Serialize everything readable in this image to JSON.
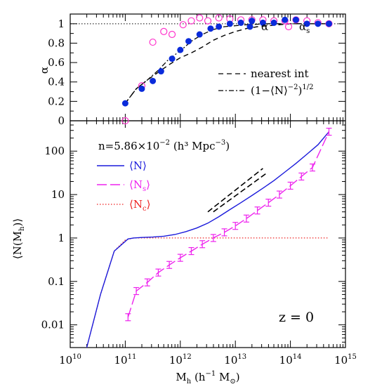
{
  "chart_data": [
    {
      "type": "scatter",
      "panel": "top",
      "ylabel": "α",
      "xscale": "log",
      "xlim": [
        10000000000.0,
        1000000000000000.0
      ],
      "ylim": [
        0,
        1.1
      ],
      "yticks": [
        "0",
        "0.2",
        "0.4",
        "0.6",
        "0.8",
        "1"
      ],
      "yticks_values": [
        0,
        0.2,
        0.4,
        0.6,
        0.8,
        1.0
      ],
      "reference_line": {
        "y": 1.0,
        "style": "dotted"
      },
      "series": [
        {
          "name": "α",
          "marker": "filled-circle",
          "color": "#0a2bdb",
          "x_log10": [
            11.0,
            11.3,
            11.5,
            11.65,
            11.85,
            12.0,
            12.15,
            12.35,
            12.55,
            12.7,
            12.9,
            13.1,
            13.3,
            13.5,
            13.7,
            13.9,
            14.1,
            14.3,
            14.5,
            14.7
          ],
          "y": [
            0.18,
            0.33,
            0.41,
            0.51,
            0.64,
            0.73,
            0.82,
            0.89,
            0.95,
            0.97,
            1.0,
            1.01,
            1.03,
            1.01,
            1.01,
            1.04,
            1.04,
            1.0,
            1.0,
            1.0
          ]
        },
        {
          "name": "α_s",
          "marker": "open-circle",
          "color": "#ff33cc",
          "x_log10": [
            11.0,
            11.3,
            11.5,
            11.7,
            11.85,
            12.05,
            12.2,
            12.35,
            12.5,
            12.7,
            12.9,
            13.1,
            13.3,
            13.5,
            13.7,
            13.9,
            14.1,
            14.3,
            14.5,
            14.7
          ],
          "y": [
            0.0,
            0.36,
            0.81,
            0.92,
            0.89,
            0.99,
            1.03,
            1.06,
            1.03,
            1.06,
            1.05,
            1.04,
            1.04,
            1.04,
            1.03,
            1.03,
            1.04,
            1.03,
            1.01,
            1.0
          ]
        },
        {
          "name": "nearest int",
          "style": "dashed",
          "color": "#000000",
          "x_log10": [
            11.0,
            11.2,
            11.4,
            11.6,
            11.8,
            12.0,
            12.2,
            12.4,
            12.6,
            12.8,
            13.0,
            13.2,
            13.4,
            13.6,
            13.8,
            14.0,
            14.2,
            14.4,
            14.6,
            14.7
          ],
          "y": [
            0.18,
            0.33,
            0.42,
            0.5,
            0.58,
            0.65,
            0.7,
            0.76,
            0.83,
            0.88,
            0.92,
            0.95,
            0.97,
            0.98,
            0.99,
            1.0,
            1.0,
            1.0,
            1.0,
            1.0
          ]
        },
        {
          "name": "(1−⟨N⟩⁻²)^(1/2)",
          "style": "dash-dot",
          "color": "#000000",
          "x_log10": [
            11.0,
            11.2,
            11.4,
            11.6,
            11.8,
            12.0,
            12.2,
            12.4,
            12.6,
            12.8,
            13.0,
            13.2,
            13.4,
            13.6,
            13.8,
            14.0,
            14.2,
            14.4,
            14.6,
            14.7
          ],
          "y": [
            0.18,
            0.33,
            0.42,
            0.52,
            0.64,
            0.72,
            0.82,
            0.89,
            0.94,
            0.97,
            0.98,
            0.99,
            0.995,
            1.0,
            1.0,
            1.0,
            1.0,
            1.0,
            1.0,
            1.0
          ]
        }
      ],
      "legend": {
        "alpha": "α",
        "alpha_s": "α",
        "alpha_s_sub": "s",
        "nearest": "nearest int",
        "sqrt_main": "(1−⟨N⟩",
        "sqrt_exp1": "−2",
        "sqrt_mid": ")",
        "sqrt_exp2": "1/2"
      }
    },
    {
      "type": "line",
      "panel": "bottom",
      "ylabel": "⟨N(M_h)⟩",
      "xlabel": "M_h (h⁻¹ M_⊙)",
      "xscale": "log",
      "yscale": "log",
      "xlim": [
        10000000000.0,
        1000000000000000.0
      ],
      "ylim": [
        0.003,
        500
      ],
      "yticks": [
        "0.01",
        "0.1",
        "1",
        "10",
        "100"
      ],
      "yticks_values": [
        0.01,
        0.1,
        1,
        10,
        100
      ],
      "xticks_values": [
        10000000000.0,
        100000000000.0,
        1000000000000.0,
        10000000000000.0,
        100000000000000.0,
        1000000000000000.0
      ],
      "series": [
        {
          "name": "⟨N⟩",
          "style": "solid",
          "color": "#1a1adb",
          "x_log10": [
            10.3,
            10.55,
            10.8,
            11.05,
            11.15,
            11.3,
            11.5,
            11.7,
            11.9,
            12.1,
            12.3,
            12.5,
            12.7,
            12.9,
            13.1,
            13.3,
            13.5,
            13.7,
            13.9,
            14.1,
            14.3,
            14.5,
            14.7
          ],
          "y": [
            0.003,
            0.05,
            0.5,
            0.95,
            1.0,
            1.03,
            1.05,
            1.1,
            1.2,
            1.4,
            1.7,
            2.2,
            3.1,
            4.5,
            6.5,
            9.5,
            14,
            21,
            33,
            52,
            85,
            140,
            280
          ]
        },
        {
          "name": "⟨N_s⟩",
          "style": "long-dash",
          "color": "#ee22ee",
          "x_log10": [
            11.05,
            11.2,
            11.4,
            11.6,
            11.8,
            12.0,
            12.2,
            12.4,
            12.6,
            12.8,
            13.0,
            13.2,
            13.4,
            13.6,
            13.8,
            14.0,
            14.2,
            14.4,
            14.7
          ],
          "y": [
            0.015,
            0.06,
            0.095,
            0.16,
            0.24,
            0.35,
            0.5,
            0.72,
            1.0,
            1.35,
            1.9,
            2.8,
            4.3,
            6.5,
            10,
            16,
            26,
            42,
            280
          ],
          "error_bars": true
        },
        {
          "name": "⟨N_c⟩",
          "style": "dotted",
          "color": "#ee2222",
          "x_log10": [
            10.3,
            10.55,
            10.8,
            11.0,
            11.15,
            11.5,
            12.0,
            12.5,
            13.0,
            13.5,
            14.0,
            14.7
          ],
          "y": [
            0.003,
            0.05,
            0.5,
            0.9,
            1.0,
            1.0,
            1.0,
            1.0,
            1.0,
            1.0,
            1.0,
            1.0
          ]
        }
      ],
      "slope_lines": [
        {
          "x_log10": [
            12.5,
            13.5
          ],
          "y": [
            4.0,
            40.0
          ]
        },
        {
          "x_log10": [
            12.6,
            13.55
          ],
          "y": [
            4.0,
            30.0
          ]
        }
      ],
      "annotations": {
        "density": "n=5.86×10",
        "density_exp": "−2",
        "density_units": " (h³ Mpc",
        "density_units_exp": "−3",
        "density_close": ")",
        "redshift": "z = 0",
        "legend_N": "⟨N⟩",
        "legend_Ns": "⟨N",
        "legend_Ns_sub": "s",
        "legend_Nc": "⟨N",
        "legend_Nc_sub": "c",
        "legend_close": "⟩",
        "ylabel_main": "⟨N(M",
        "ylabel_sub": "h",
        "ylabel_close": ")⟩",
        "xlabel_main": "M",
        "xlabel_sub": "h",
        "xlabel_rest": " (h",
        "xlabel_exp": "−1",
        "xlabel_m": " M",
        "xlabel_sun": "⊙",
        "xlabel_close": ")"
      },
      "xtick_base": "10",
      "xtick_exps": [
        "10",
        "11",
        "12",
        "13",
        "14",
        "15"
      ]
    }
  ],
  "colors": {
    "alpha": "#0a2bdb",
    "alpha_s": "#ff33cc",
    "N": "#1a1adb",
    "Ns": "#ee22ee",
    "Nc": "#ee2222",
    "axis": "#000000"
  }
}
